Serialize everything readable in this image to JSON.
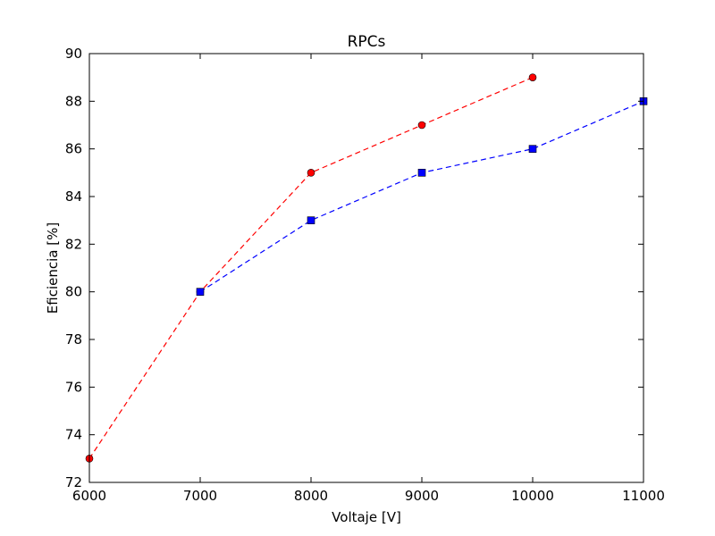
{
  "chart_data": {
    "type": "line",
    "title": "RPCs",
    "xlabel": "Voltaje [V]",
    "ylabel": "Eficiencia [%]",
    "xlim": [
      6000,
      11000
    ],
    "ylim": [
      72,
      90
    ],
    "x_ticks": [
      6000,
      7000,
      8000,
      9000,
      10000,
      11000
    ],
    "y_ticks": [
      72,
      74,
      76,
      78,
      80,
      82,
      84,
      86,
      88,
      90
    ],
    "grid": false,
    "series": [
      {
        "color": "#ff0000",
        "marker": "circle",
        "line_style": "dashed",
        "x": [
          6000,
          7000,
          8000,
          9000,
          10000
        ],
        "y": [
          73,
          80,
          85,
          87,
          89
        ]
      },
      {
        "color": "#0000ff",
        "marker": "square",
        "line_style": "dashed",
        "x": [
          7000,
          8000,
          9000,
          10000,
          11000
        ],
        "y": [
          80,
          83,
          85,
          86,
          88
        ]
      }
    ]
  }
}
